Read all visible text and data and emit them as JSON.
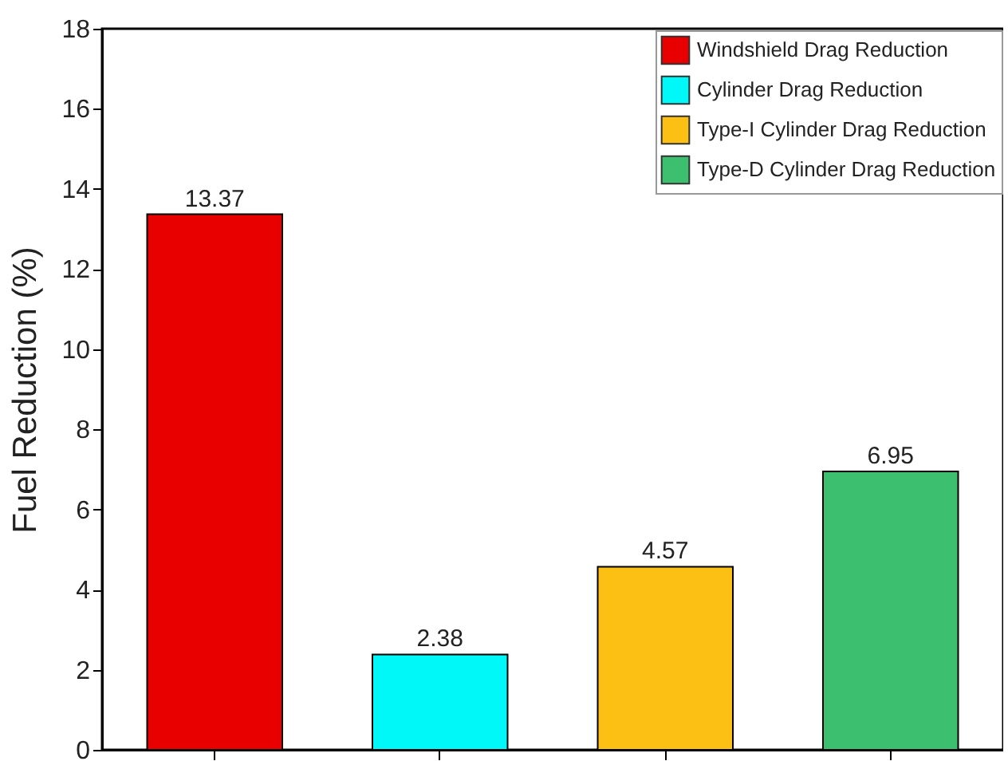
{
  "chart_data": {
    "type": "bar",
    "ylabel": "Fuel Reduction (%)",
    "categories": [
      null,
      null,
      null,
      null
    ],
    "series": [
      {
        "name": "Windshield Drag Reduction",
        "color": "#e80000",
        "values": [
          13.37,
          null,
          null,
          null
        ]
      },
      {
        "name": "Cylinder Drag Reduction",
        "color": "#00f8f8",
        "values": [
          null,
          2.38,
          null,
          null
        ]
      },
      {
        "name": "Type-I Cylinder Drag Reduction",
        "color": "#fcc015",
        "values": [
          null,
          null,
          4.57,
          null
        ]
      },
      {
        "name": "Type-D Cylinder Drag Reduction",
        "color": "#3cc070",
        "values": [
          null,
          null,
          null,
          6.95
        ]
      }
    ],
    "ylim": [
      0,
      18
    ],
    "yticks": [
      0,
      2,
      4,
      6,
      8,
      10,
      12,
      14,
      16,
      18
    ],
    "data_labels": true,
    "legend": "top right",
    "grid": false
  }
}
